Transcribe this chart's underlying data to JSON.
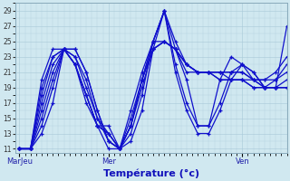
{
  "xlabel": "Température (°c)",
  "x_tick_labels": [
    "MarJeu",
    "Mer",
    "Ven"
  ],
  "x_tick_positions": [
    0,
    48,
    120
  ],
  "ylim": [
    10.5,
    30.0
  ],
  "xlim": [
    -2,
    144
  ],
  "yticks": [
    11,
    13,
    15,
    17,
    19,
    21,
    23,
    25,
    27,
    29
  ],
  "background_color": "#d0e8f0",
  "grid_color": "#a8c8d8",
  "line_color": "#1010cc",
  "series": [
    [
      0,
      11,
      6,
      11,
      12,
      13,
      18,
      17,
      24,
      24,
      30,
      22,
      36,
      18,
      42,
      14,
      48,
      11,
      54,
      11,
      60,
      14,
      66,
      19,
      72,
      24,
      78,
      25,
      84,
      24,
      90,
      21,
      96,
      21,
      102,
      21,
      108,
      21,
      114,
      21,
      120,
      21,
      126,
      20,
      132,
      20,
      138,
      21,
      144,
      23
    ],
    [
      0,
      11,
      6,
      11,
      12,
      14,
      18,
      19,
      24,
      24,
      30,
      24,
      36,
      21,
      42,
      16,
      48,
      12,
      54,
      11,
      60,
      14,
      66,
      20,
      72,
      24,
      78,
      25,
      84,
      24,
      90,
      22,
      96,
      21,
      102,
      21,
      108,
      21,
      114,
      21,
      120,
      21,
      126,
      20,
      132,
      20,
      138,
      20,
      144,
      22
    ],
    [
      0,
      11,
      6,
      11,
      12,
      15,
      18,
      20,
      24,
      24,
      30,
      24,
      36,
      21,
      42,
      16,
      48,
      12,
      54,
      11,
      60,
      15,
      66,
      20,
      72,
      24,
      78,
      25,
      84,
      24,
      90,
      22,
      96,
      21,
      102,
      21,
      108,
      21,
      114,
      20,
      120,
      20,
      126,
      20,
      132,
      19,
      138,
      20,
      144,
      21
    ],
    [
      0,
      11,
      6,
      11,
      12,
      16,
      18,
      21,
      24,
      24,
      30,
      23,
      36,
      20,
      42,
      15,
      48,
      12,
      54,
      11,
      60,
      16,
      66,
      21,
      72,
      25,
      78,
      25,
      84,
      24,
      90,
      22,
      96,
      21,
      102,
      21,
      108,
      20,
      114,
      20,
      120,
      20,
      126,
      19,
      132,
      19,
      138,
      19,
      144,
      20
    ],
    [
      0,
      11,
      6,
      11,
      12,
      17,
      18,
      22,
      24,
      24,
      30,
      23,
      36,
      19,
      42,
      15,
      48,
      13,
      54,
      11,
      60,
      14,
      66,
      20,
      72,
      25,
      78,
      29,
      84,
      25,
      90,
      22,
      96,
      21,
      102,
      21,
      108,
      20,
      114,
      20,
      120,
      20,
      126,
      19,
      132,
      19,
      138,
      19,
      144,
      19
    ],
    [
      0,
      11,
      6,
      11,
      12,
      18,
      18,
      23,
      24,
      24,
      30,
      22,
      36,
      18,
      42,
      14,
      48,
      13,
      54,
      11,
      60,
      13,
      66,
      18,
      72,
      25,
      78,
      29,
      84,
      22,
      90,
      17,
      96,
      14,
      102,
      14,
      108,
      17,
      114,
      21,
      120,
      22,
      126,
      21,
      132,
      19,
      138,
      19,
      144,
      19
    ],
    [
      0,
      11,
      6,
      11,
      12,
      19,
      18,
      23,
      24,
      24,
      30,
      22,
      36,
      18,
      42,
      14,
      48,
      13,
      54,
      11,
      60,
      12,
      66,
      16,
      72,
      24,
      78,
      29,
      84,
      21,
      90,
      16,
      96,
      13,
      102,
      13,
      108,
      16,
      114,
      20,
      120,
      22,
      126,
      21,
      132,
      19,
      138,
      19,
      144,
      19
    ],
    [
      0,
      11,
      6,
      11,
      12,
      20,
      18,
      24,
      24,
      24,
      30,
      22,
      36,
      17,
      42,
      14,
      48,
      14,
      54,
      11,
      60,
      14,
      66,
      20,
      72,
      25,
      78,
      29,
      84,
      24,
      90,
      20,
      96,
      14,
      102,
      14,
      108,
      20,
      114,
      23,
      120,
      22,
      126,
      20,
      132,
      19,
      138,
      19,
      144,
      27
    ]
  ]
}
